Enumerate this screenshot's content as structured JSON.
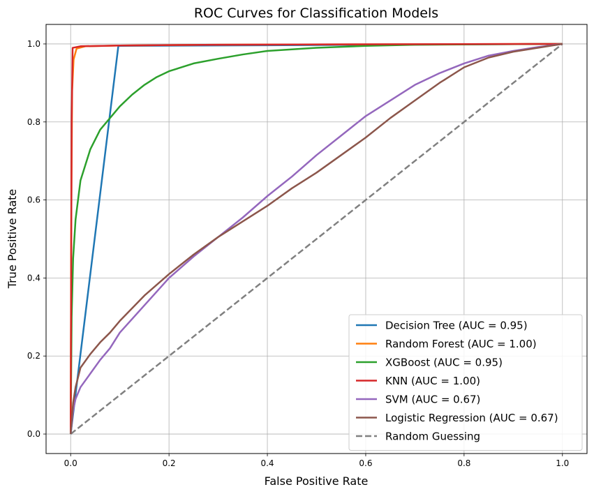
{
  "chart_data": {
    "type": "line",
    "title": "ROC Curves for Classification Models",
    "xlabel": "False Positive Rate",
    "ylabel": "True Positive Rate",
    "xlim": [
      -0.05,
      1.05
    ],
    "ylim": [
      -0.05,
      1.05
    ],
    "xticks": [
      "0.0",
      "0.2",
      "0.4",
      "0.6",
      "0.8",
      "1.0"
    ],
    "yticks": [
      "0.0",
      "0.2",
      "0.4",
      "0.6",
      "0.8",
      "1.0"
    ],
    "grid": true,
    "legend_position": "lower-right",
    "series": [
      {
        "name": "Decision Tree (AUC = 0.95)",
        "color": "#1f77b4",
        "dashed": false,
        "points": [
          [
            0.0,
            0.0
          ],
          [
            0.097,
            0.995
          ],
          [
            1.0,
            1.0
          ]
        ]
      },
      {
        "name": "Random Forest (AUC = 1.00)",
        "color": "#ff7f0e",
        "dashed": false,
        "points": [
          [
            0.0,
            0.0
          ],
          [
            0.001,
            0.5
          ],
          [
            0.003,
            0.88
          ],
          [
            0.006,
            0.96
          ],
          [
            0.012,
            0.988
          ],
          [
            0.03,
            0.994
          ],
          [
            0.1,
            0.996
          ],
          [
            0.3,
            0.998
          ],
          [
            1.0,
            1.0
          ]
        ]
      },
      {
        "name": "XGBoost (AUC = 0.95)",
        "color": "#2ca02c",
        "dashed": false,
        "points": [
          [
            0.0,
            0.0
          ],
          [
            0.002,
            0.3
          ],
          [
            0.005,
            0.45
          ],
          [
            0.01,
            0.55
          ],
          [
            0.02,
            0.65
          ],
          [
            0.04,
            0.73
          ],
          [
            0.06,
            0.78
          ],
          [
            0.08,
            0.81
          ],
          [
            0.1,
            0.84
          ],
          [
            0.125,
            0.87
          ],
          [
            0.15,
            0.895
          ],
          [
            0.175,
            0.915
          ],
          [
            0.2,
            0.93
          ],
          [
            0.25,
            0.95
          ],
          [
            0.3,
            0.962
          ],
          [
            0.35,
            0.973
          ],
          [
            0.4,
            0.982
          ],
          [
            0.5,
            0.99
          ],
          [
            0.6,
            0.995
          ],
          [
            0.7,
            0.998
          ],
          [
            1.0,
            1.0
          ]
        ]
      },
      {
        "name": "KNN (AUC = 1.00)",
        "color": "#d62728",
        "dashed": false,
        "points": [
          [
            0.0,
            0.0
          ],
          [
            0.001,
            0.4
          ],
          [
            0.002,
            0.8
          ],
          [
            0.004,
            0.99
          ],
          [
            0.02,
            0.994
          ],
          [
            0.1,
            0.996
          ],
          [
            0.3,
            0.998
          ],
          [
            0.6,
            0.999
          ],
          [
            1.0,
            1.0
          ]
        ]
      },
      {
        "name": "SVM (AUC = 0.67)",
        "color": "#9467bd",
        "dashed": false,
        "points": [
          [
            0.0,
            0.0
          ],
          [
            0.005,
            0.06
          ],
          [
            0.01,
            0.09
          ],
          [
            0.02,
            0.12
          ],
          [
            0.04,
            0.155
          ],
          [
            0.06,
            0.19
          ],
          [
            0.08,
            0.22
          ],
          [
            0.1,
            0.26
          ],
          [
            0.15,
            0.33
          ],
          [
            0.2,
            0.4
          ],
          [
            0.25,
            0.455
          ],
          [
            0.3,
            0.505
          ],
          [
            0.35,
            0.555
          ],
          [
            0.4,
            0.61
          ],
          [
            0.45,
            0.66
          ],
          [
            0.5,
            0.715
          ],
          [
            0.55,
            0.765
          ],
          [
            0.6,
            0.815
          ],
          [
            0.65,
            0.855
          ],
          [
            0.7,
            0.895
          ],
          [
            0.75,
            0.925
          ],
          [
            0.8,
            0.95
          ],
          [
            0.85,
            0.97
          ],
          [
            0.9,
            0.982
          ],
          [
            0.95,
            0.992
          ],
          [
            1.0,
            1.0
          ]
        ]
      },
      {
        "name": "Logistic Regression (AUC = 0.67)",
        "color": "#8c564b",
        "dashed": false,
        "points": [
          [
            0.0,
            0.0
          ],
          [
            0.005,
            0.08
          ],
          [
            0.01,
            0.12
          ],
          [
            0.02,
            0.17
          ],
          [
            0.04,
            0.205
          ],
          [
            0.06,
            0.235
          ],
          [
            0.08,
            0.26
          ],
          [
            0.1,
            0.29
          ],
          [
            0.15,
            0.355
          ],
          [
            0.2,
            0.41
          ],
          [
            0.25,
            0.46
          ],
          [
            0.3,
            0.505
          ],
          [
            0.35,
            0.545
          ],
          [
            0.4,
            0.585
          ],
          [
            0.45,
            0.63
          ],
          [
            0.5,
            0.67
          ],
          [
            0.55,
            0.715
          ],
          [
            0.6,
            0.76
          ],
          [
            0.65,
            0.81
          ],
          [
            0.7,
            0.855
          ],
          [
            0.75,
            0.9
          ],
          [
            0.8,
            0.94
          ],
          [
            0.85,
            0.965
          ],
          [
            0.9,
            0.98
          ],
          [
            0.95,
            0.99
          ],
          [
            1.0,
            1.0
          ]
        ]
      },
      {
        "name": "Random Guessing",
        "color": "#808080",
        "dashed": true,
        "points": [
          [
            0.0,
            0.0
          ],
          [
            1.0,
            1.0
          ]
        ]
      }
    ]
  }
}
